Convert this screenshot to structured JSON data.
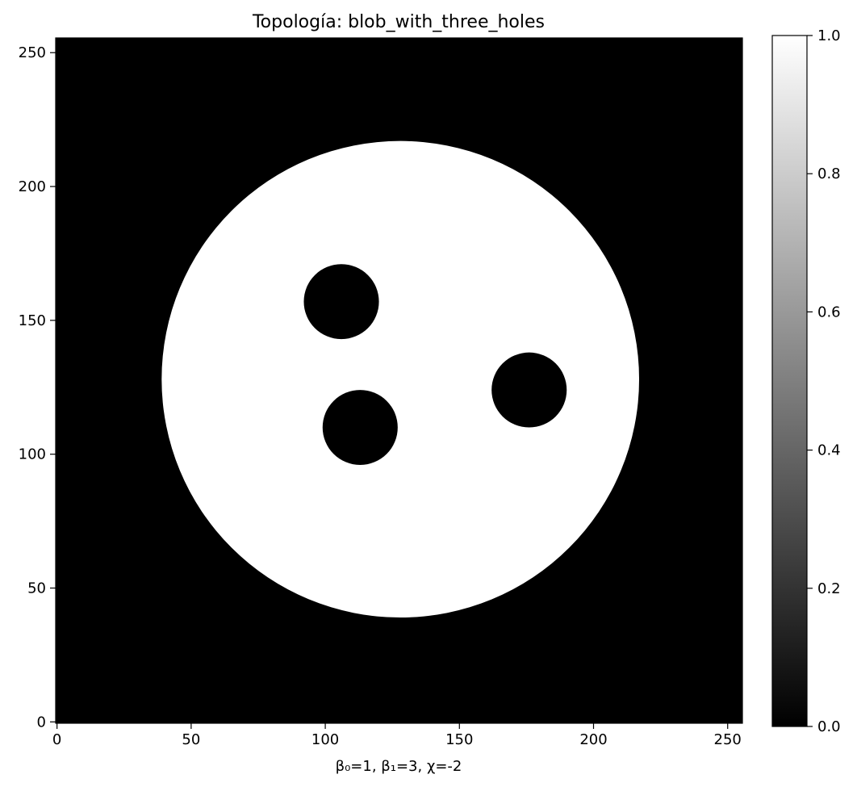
{
  "chart_data": {
    "type": "heatmap",
    "title": "Topología: blob_with_three_holes",
    "xlabel": "β₀=1, β₁=3, χ=-2",
    "ylabel": "",
    "xlim": [
      -0.5,
      255.5
    ],
    "ylim": [
      -0.5,
      255.5
    ],
    "x_ticks": [
      0,
      50,
      100,
      150,
      200,
      250
    ],
    "y_ticks": [
      0,
      50,
      100,
      150,
      200,
      250
    ],
    "grid": false,
    "colormap": "gray",
    "value_range": [
      0.0,
      1.0
    ],
    "background_value": 0,
    "shapes": [
      {
        "kind": "disk",
        "value": 1,
        "center": [
          128,
          128
        ],
        "radius": 89
      },
      {
        "kind": "hole",
        "value": 0,
        "center": [
          106,
          157
        ],
        "radius": 14
      },
      {
        "kind": "hole",
        "value": 0,
        "center": [
          113,
          110
        ],
        "radius": 14
      },
      {
        "kind": "hole",
        "value": 0,
        "center": [
          176,
          124
        ],
        "radius": 14
      }
    ],
    "colorbar": {
      "ticks": [
        0.0,
        0.2,
        0.4,
        0.6,
        0.8,
        1.0
      ],
      "tick_labels": [
        "0.0",
        "0.2",
        "0.4",
        "0.6",
        "0.8",
        "1.0"
      ]
    }
  },
  "colors": {
    "low": "#000000",
    "high": "#ffffff",
    "axis": "#000000"
  }
}
